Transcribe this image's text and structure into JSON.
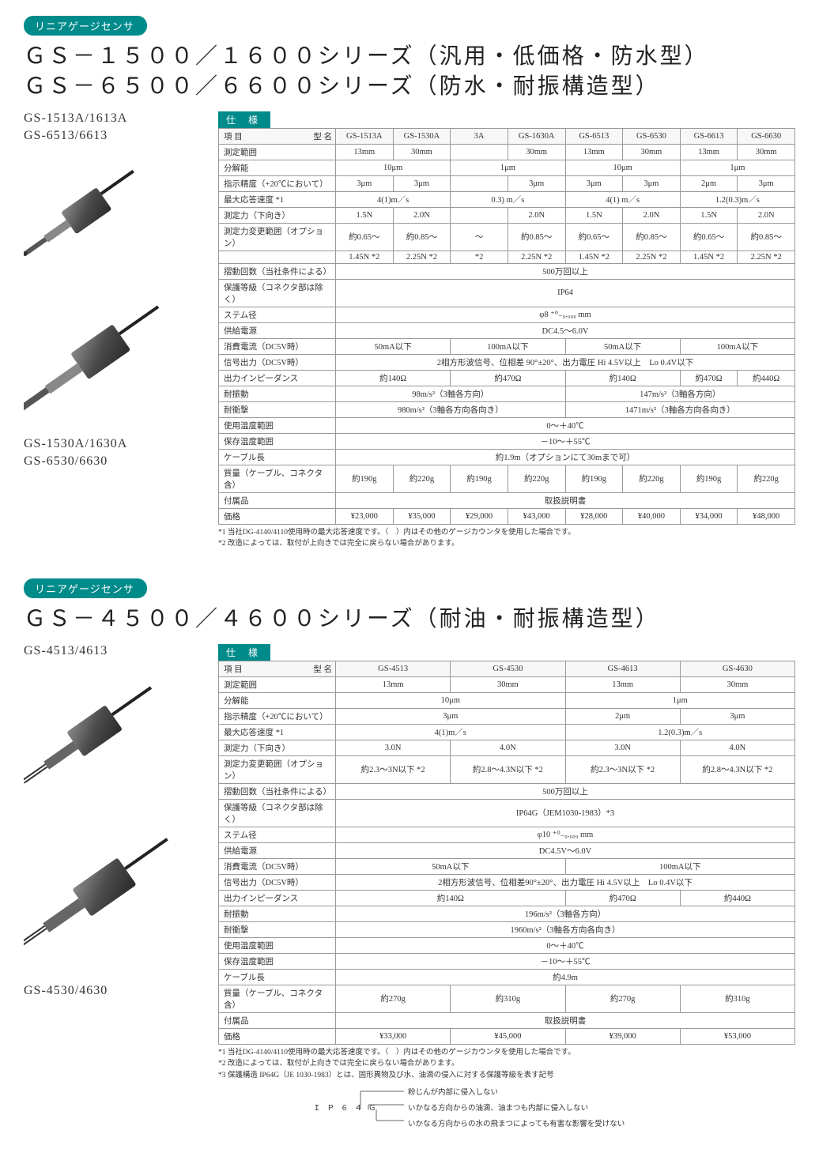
{
  "accent_color": "#008b8b",
  "border_color": "#999999",
  "text_color": "#333333",
  "bg_color": "#ffffff",
  "section1": {
    "pill": "リニアゲージセンサ",
    "title1": "ＧＳ－１５００／１６００シリーズ（汎用・低価格・防水型）",
    "title2": "ＧＳ－６５００／６６００シリーズ（防水・耐振構造型）",
    "left_models": {
      "top_a": "GS-1513A/1613A",
      "top_b": "GS-6513/6613",
      "bot_a": "GS-1530A/1630A",
      "bot_b": "GS-6530/6630"
    },
    "spec_label": "仕　様",
    "head_item": "項 目",
    "head_model": "型 名",
    "cols": [
      "GS-1513A",
      "GS-1530A",
      "3A",
      "GS-1630A",
      "GS-6513",
      "GS-6530",
      "GS-6613",
      "GS-6630"
    ],
    "rows": [
      {
        "label": "測定範囲",
        "cells": [
          "13mm",
          "30mm",
          "",
          "30mm",
          "13mm",
          "30mm",
          "13mm",
          "30mm"
        ]
      },
      {
        "label": "分解能",
        "spans": [
          {
            "text": "10μm",
            "span": 2
          },
          {
            "text": "1μm",
            "span": 2
          },
          {
            "text": "10μm",
            "span": 2
          },
          {
            "text": "1μm",
            "span": 2
          }
        ]
      },
      {
        "label": "指示精度（+20℃において）",
        "cells": [
          "3μm",
          "3μm",
          "",
          "3μm",
          "3μm",
          "3μm",
          "2μm",
          "3μm"
        ]
      },
      {
        "label": "最大応答速度 *1",
        "spans": [
          {
            "text": "4(1)m／s",
            "span": 2
          },
          {
            "text": "0.3) m／s",
            "span": 2
          },
          {
            "text": "4(1) m／s",
            "span": 2
          },
          {
            "text": "1.2(0.3)m／s",
            "span": 2
          }
        ]
      },
      {
        "label": "測定力（下向き）",
        "cells": [
          "1.5N",
          "2.0N",
          "",
          "2.0N",
          "1.5N",
          "2.0N",
          "1.5N",
          "2.0N"
        ]
      },
      {
        "label": "測定力変更範囲（オプション）",
        "cells": [
          "約0.65～",
          "約0.85～",
          "～",
          "約0.85～",
          "約0.65～",
          "約0.85～",
          "約0.65～",
          "約0.85～"
        ]
      },
      {
        "label": "",
        "cells": [
          "1.45N *2",
          "2.25N *2",
          "*2",
          "2.25N *2",
          "1.45N *2",
          "2.25N *2",
          "1.45N *2",
          "2.25N *2"
        ],
        "noborder_top": true
      },
      {
        "label": "摺動回数（当社条件による）",
        "full": "500万回以上"
      },
      {
        "label": "保護等級（コネクタ部は除く）",
        "full": "IP64"
      },
      {
        "label": "ステム径",
        "full": "φ8 ⁺⁰₋₀.₀₀₉ mm"
      },
      {
        "label": "供給電源",
        "full": "DC4.5～6.0V"
      },
      {
        "label": "消費電流（DC5V時）",
        "spans": [
          {
            "text": "50mA以下",
            "span": 2
          },
          {
            "text": "100mA以下",
            "span": 2
          },
          {
            "text": "50mA以下",
            "span": 2
          },
          {
            "text": "100mA以下",
            "span": 2
          }
        ]
      },
      {
        "label": "信号出力（DC5V時）",
        "full": "2相方形波信号、位相差 90°±20°、出力電圧 Hi 4.5V以上　Lo 0.4V以下"
      },
      {
        "label": "出力インピーダンス",
        "spans": [
          {
            "text": "約140Ω",
            "span": 2
          },
          {
            "text": "約470Ω",
            "span": 2
          },
          {
            "text": "約140Ω",
            "span": 2
          },
          {
            "text": "約470Ω",
            "span": 1
          },
          {
            "text": "約440Ω",
            "span": 1
          }
        ]
      },
      {
        "label": "耐振動",
        "spans": [
          {
            "text": "98m/s²（3軸各方向）",
            "span": 4
          },
          {
            "text": "147m/s²（3軸各方向）",
            "span": 4
          }
        ]
      },
      {
        "label": "耐衝撃",
        "spans": [
          {
            "text": "980m/s²（3軸各方向各向き）",
            "span": 4
          },
          {
            "text": "1471m/s²（3軸各方向各向き）",
            "span": 4
          }
        ]
      },
      {
        "label": "使用温度範囲",
        "full": "0～＋40℃"
      },
      {
        "label": "保存温度範囲",
        "full": "－10～＋55℃"
      },
      {
        "label": "ケーブル長",
        "full": "約1.9m（オプションにて30mまで可）"
      },
      {
        "label": "質量（ケーブル、コネクタ含）",
        "cells": [
          "約190g",
          "約220g",
          "約190g",
          "約220g",
          "約190g",
          "約220g",
          "約190g",
          "約220g"
        ]
      },
      {
        "label": "付属品",
        "full": "取扱説明書"
      },
      {
        "label": "価格",
        "cells": [
          "¥23,000",
          "¥35,000",
          "¥29,000",
          "¥43,000",
          "¥28,000",
          "¥40,000",
          "¥34,000",
          "¥48,000"
        ]
      }
    ],
    "notes": [
      "*1 当社DG-4140/4110使用時の最大応答速度です。（　）内はその他のゲージカウンタを使用した場合です。",
      "*2 改造によっては、取付が上向きでは完全に戻らない場合があります。"
    ]
  },
  "section2": {
    "pill": "リニアゲージセンサ",
    "title1": "ＧＳ－４５００／４６００シリーズ（耐油・耐振構造型）",
    "left_models": {
      "top_a": "GS-4513/4613",
      "bot_a": "GS-4530/4630"
    },
    "spec_label": "仕　様",
    "head_item": "項 目",
    "head_model": "型 名",
    "cols": [
      "GS-4513",
      "GS-4530",
      "GS-4613",
      "GS-4630"
    ],
    "rows": [
      {
        "label": "測定範囲",
        "cells": [
          "13mm",
          "30mm",
          "13mm",
          "30mm"
        ]
      },
      {
        "label": "分解能",
        "spans": [
          {
            "text": "10μm",
            "span": 2
          },
          {
            "text": "1μm",
            "span": 2
          }
        ]
      },
      {
        "label": "指示精度（+20℃において）",
        "spans": [
          {
            "text": "3μm",
            "span": 2
          },
          {
            "text": "2μm",
            "span": 1
          },
          {
            "text": "3μm",
            "span": 1
          }
        ]
      },
      {
        "label": "最大応答速度 *1",
        "spans": [
          {
            "text": "4(1)m／s",
            "span": 2
          },
          {
            "text": "1.2(0.3)m／s",
            "span": 2
          }
        ]
      },
      {
        "label": "測定力（下向き）",
        "cells": [
          "3.0N",
          "4.0N",
          "3.0N",
          "4.0N"
        ]
      },
      {
        "label": "測定力変更範囲（オプション）",
        "cells": [
          "約2.3～3N以下 *2",
          "約2.8～4.3N以下 *2",
          "約2.3～3N以下 *2",
          "約2.8～4.3N以下 *2"
        ]
      },
      {
        "label": "摺動回数（当社条件による）",
        "full": "500万回以上"
      },
      {
        "label": "保護等級（コネクタ部は除く）",
        "full": "IP64G（JEM1030-1983）*3"
      },
      {
        "label": "ステム径",
        "full": "φ10 ⁺⁰₋₀.₀₀₉ mm"
      },
      {
        "label": "供給電源",
        "full": "DC4.5V～6.0V"
      },
      {
        "label": "消費電流（DC5V時）",
        "spans": [
          {
            "text": "50mA以下",
            "span": 2
          },
          {
            "text": "100mA以下",
            "span": 2
          }
        ]
      },
      {
        "label": "信号出力（DC5V時）",
        "full": "2相方形波信号、位相差90°±20°、出力電圧 Hi 4.5V以上　Lo 0.4V以下"
      },
      {
        "label": "出力インピーダンス",
        "spans": [
          {
            "text": "約140Ω",
            "span": 2
          },
          {
            "text": "約470Ω",
            "span": 1
          },
          {
            "text": "約440Ω",
            "span": 1
          }
        ]
      },
      {
        "label": "耐振動",
        "full": "196m/s²（3軸各方向）"
      },
      {
        "label": "耐衝撃",
        "full": "1960m/s²（3軸各方向各向き）"
      },
      {
        "label": "使用温度範囲",
        "full": "0～＋40℃"
      },
      {
        "label": "保存温度範囲",
        "full": "－10～＋55℃"
      },
      {
        "label": "ケーブル長",
        "full": "約4.9m"
      },
      {
        "label": "質量（ケーブル、コネクタ含）",
        "cells": [
          "約270g",
          "約310g",
          "約270g",
          "約310g"
        ]
      },
      {
        "label": "付属品",
        "full": "取扱説明書"
      },
      {
        "label": "価格",
        "cells": [
          "¥33,000",
          "¥45,000",
          "¥39,000",
          "¥53,000"
        ]
      }
    ],
    "notes": [
      "*1 当社DG-4140/4110使用時の最大応答速度です。（　）内はその他のゲージカウンタを使用した場合です。",
      "*2 改造によっては、取付が上向きでは完全に戻らない場合があります。",
      "*3 保護構造 IP64G（JE 1030-1983）とは、固形異物及び水、油滴の侵入に対する保護等級を表す記号"
    ],
    "ip_diagram": {
      "label": "ＩＰ６４Ｇ",
      "line1": "粉じんが内部に侵入しない",
      "line2": "いかなる方向からの油滴、油まつも内部に侵入しない",
      "line3": "いかなる方向からの水の飛まつによっても有害な影響を受けない"
    }
  }
}
